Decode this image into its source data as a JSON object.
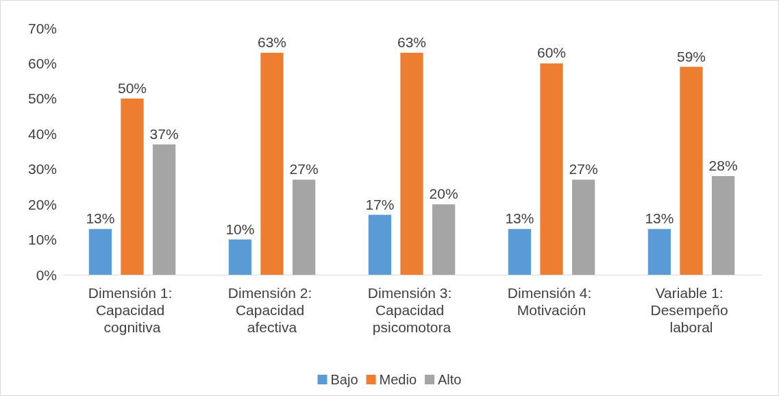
{
  "chart_data": {
    "type": "bar",
    "categories": [
      "Dimensión 1: Capacidad cognitiva",
      "Dimensión 2: Capacidad afectiva",
      "Dimensión 3: Capacidad psicomotora",
      "Dimensión 4: Motivación",
      "Variable 1: Desempeño laboral"
    ],
    "series": [
      {
        "name": "Bajo",
        "color": "#5b9bd5",
        "values": [
          13,
          10,
          17,
          13,
          13
        ],
        "value_labels": [
          "13%",
          "10%",
          "17%",
          "13%",
          "13%"
        ]
      },
      {
        "name": "Medio",
        "color": "#ed7d31",
        "values": [
          50,
          63,
          63,
          60,
          59
        ],
        "value_labels": [
          "50%",
          "63%",
          "63%",
          "60%",
          "59%"
        ]
      },
      {
        "name": "Alto",
        "color": "#a5a5a5",
        "values": [
          37,
          27,
          20,
          27,
          28
        ],
        "value_labels": [
          "37%",
          "27%",
          "20%",
          "27%",
          "28%"
        ]
      }
    ],
    "ylim": [
      0,
      70
    ],
    "yticks": [
      {
        "value": 0,
        "label": "0%"
      },
      {
        "value": 10,
        "label": "10%"
      },
      {
        "value": 20,
        "label": "20%"
      },
      {
        "value": 30,
        "label": "30%"
      },
      {
        "value": 40,
        "label": "40%"
      },
      {
        "value": 50,
        "label": "50%"
      },
      {
        "value": 60,
        "label": "60%"
      },
      {
        "value": 70,
        "label": "70%"
      }
    ],
    "legend": "bottom",
    "grid": false
  }
}
